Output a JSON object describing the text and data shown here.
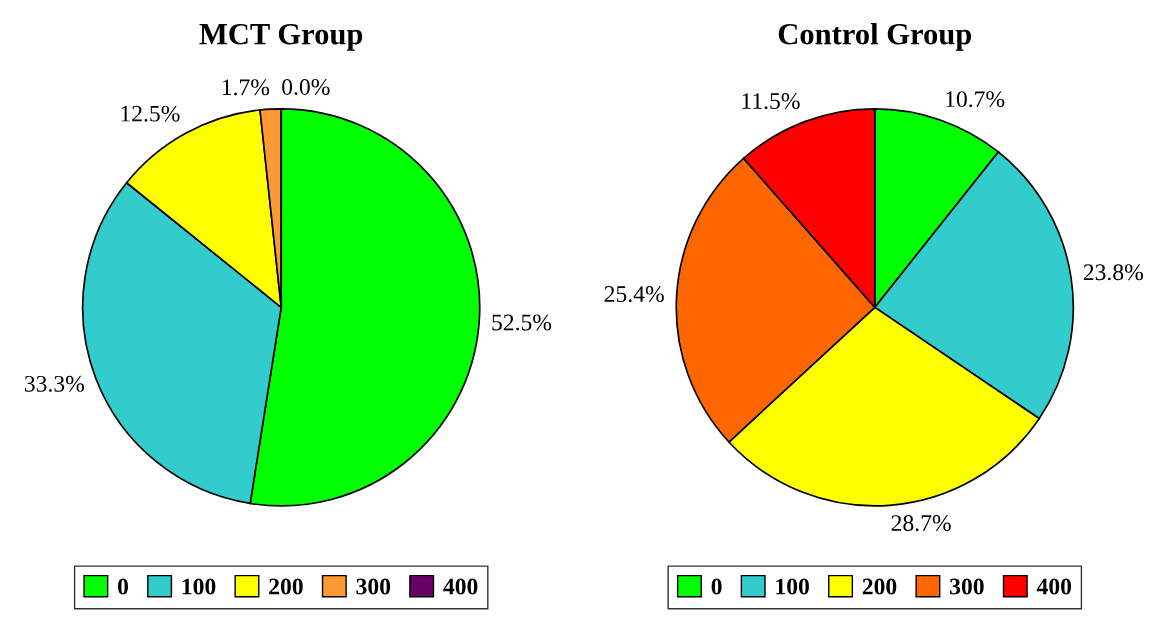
{
  "chart_data": [
    {
      "type": "pie",
      "title": "MCT Group",
      "categories": [
        "0",
        "100",
        "200",
        "300",
        "400"
      ],
      "values": [
        52.5,
        33.3,
        12.5,
        1.7,
        0.0
      ],
      "colors": [
        "#00ff00",
        "#33cccc",
        "#ffff00",
        "#ff9933",
        "#660066"
      ],
      "value_labels": [
        "52.5%",
        "33.3%",
        "12.5%",
        "1.7%",
        "0.0%"
      ],
      "legend": "bottom"
    },
    {
      "type": "pie",
      "title": "Control Group",
      "categories": [
        "0",
        "100",
        "200",
        "300",
        "400"
      ],
      "values": [
        10.7,
        23.8,
        28.7,
        25.4,
        11.5
      ],
      "colors": [
        "#00ff00",
        "#33cccc",
        "#ffff00",
        "#ff6600",
        "#ff0000"
      ],
      "value_labels": [
        "10.7%",
        "23.8%",
        "28.7%",
        "25.4%",
        "11.5%"
      ],
      "legend": "bottom"
    }
  ]
}
